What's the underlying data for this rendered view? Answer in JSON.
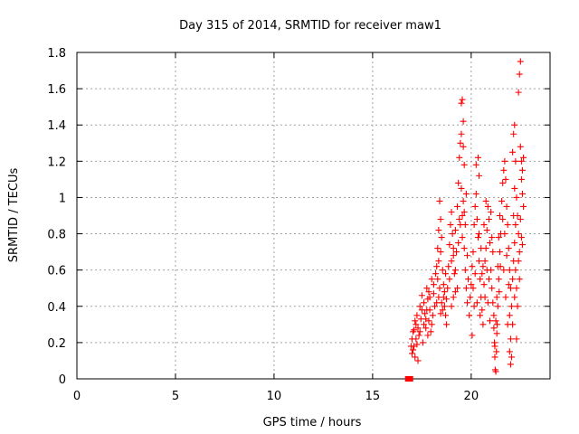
{
  "chart_data": {
    "type": "scatter",
    "title": "Day 315 of 2014, SRMTID for receiver maw1",
    "xlabel": "GPS time / hours",
    "ylabel": "SRMTID / TECUs",
    "xlim": [
      0,
      24
    ],
    "ylim": [
      0,
      1.8
    ],
    "xticks": [
      0,
      5,
      10,
      15,
      20
    ],
    "yticks": [
      0,
      0.2,
      0.4,
      0.6,
      0.8,
      1,
      1.2,
      1.4,
      1.6,
      1.8
    ],
    "xtick_labels": [
      "0",
      "5",
      "10",
      "15",
      "20"
    ],
    "ytick_labels": [
      "0",
      "0.2",
      "0.4",
      "0.6",
      "0.8",
      "1",
      "1.2",
      "1.4",
      "1.6",
      "1.8"
    ],
    "grid": true,
    "marker": "+",
    "color": "#ff0000",
    "square_markers": [
      {
        "x": 16.78,
        "y": 0.0
      },
      {
        "x": 16.92,
        "y": 0.0
      }
    ],
    "series": [
      {
        "name": "SRMTID",
        "points": [
          [
            16.95,
            0.18
          ],
          [
            17.0,
            0.22
          ],
          [
            17.05,
            0.16
          ],
          [
            17.1,
            0.27
          ],
          [
            17.15,
            0.12
          ],
          [
            17.2,
            0.3
          ],
          [
            17.25,
            0.35
          ],
          [
            17.3,
            0.1
          ],
          [
            17.35,
            0.24
          ],
          [
            17.4,
            0.4
          ],
          [
            17.45,
            0.33
          ],
          [
            17.5,
            0.46
          ],
          [
            17.55,
            0.2
          ],
          [
            17.0,
            0.14
          ],
          [
            17.1,
            0.18
          ],
          [
            17.2,
            0.22
          ],
          [
            17.3,
            0.28
          ],
          [
            17.4,
            0.26
          ],
          [
            17.5,
            0.38
          ],
          [
            17.6,
            0.3
          ],
          [
            17.05,
            0.26
          ],
          [
            17.15,
            0.32
          ],
          [
            17.25,
            0.19
          ],
          [
            17.6,
            0.42
          ],
          [
            17.65,
            0.36
          ],
          [
            17.7,
            0.28
          ],
          [
            17.75,
            0.5
          ],
          [
            17.8,
            0.44
          ],
          [
            17.85,
            0.32
          ],
          [
            17.9,
            0.38
          ],
          [
            17.95,
            0.26
          ],
          [
            18.0,
            0.55
          ],
          [
            18.05,
            0.35
          ],
          [
            18.1,
            0.47
          ],
          [
            18.15,
            0.4
          ],
          [
            17.7,
            0.33
          ],
          [
            17.8,
            0.24
          ],
          [
            17.9,
            0.45
          ],
          [
            18.0,
            0.3
          ],
          [
            18.1,
            0.52
          ],
          [
            17.75,
            0.38
          ],
          [
            17.85,
            0.48
          ],
          [
            18.2,
            0.58
          ],
          [
            18.25,
            0.62
          ],
          [
            18.3,
            0.72
          ],
          [
            18.35,
            0.82
          ],
          [
            18.4,
            0.98
          ],
          [
            18.45,
            0.88
          ],
          [
            18.5,
            0.78
          ],
          [
            18.55,
            0.6
          ],
          [
            18.6,
            0.45
          ],
          [
            18.65,
            0.4
          ],
          [
            18.7,
            0.35
          ],
          [
            18.75,
            0.3
          ],
          [
            18.8,
            0.5
          ],
          [
            18.3,
            0.55
          ],
          [
            18.35,
            0.65
          ],
          [
            18.4,
            0.5
          ],
          [
            18.45,
            0.7
          ],
          [
            18.5,
            0.42
          ],
          [
            18.55,
            0.38
          ],
          [
            18.6,
            0.52
          ],
          [
            18.65,
            0.48
          ],
          [
            18.7,
            0.58
          ],
          [
            18.75,
            0.44
          ],
          [
            18.25,
            0.42
          ],
          [
            18.35,
            0.45
          ],
          [
            18.45,
            0.36
          ],
          [
            18.85,
            0.62
          ],
          [
            18.9,
            0.74
          ],
          [
            18.95,
            0.85
          ],
          [
            19.0,
            0.92
          ],
          [
            19.05,
            0.8
          ],
          [
            19.1,
            0.68
          ],
          [
            19.15,
            0.58
          ],
          [
            19.2,
            0.48
          ],
          [
            19.25,
            0.7
          ],
          [
            19.3,
            0.95
          ],
          [
            19.35,
            1.08
          ],
          [
            19.4,
            1.22
          ],
          [
            19.45,
            1.3
          ],
          [
            18.9,
            0.55
          ],
          [
            19.0,
            0.65
          ],
          [
            19.1,
            0.45
          ],
          [
            19.2,
            0.6
          ],
          [
            19.3,
            0.5
          ],
          [
            19.4,
            0.88
          ],
          [
            19.0,
            0.4
          ],
          [
            19.1,
            0.72
          ],
          [
            19.2,
            0.82
          ],
          [
            19.35,
            0.75
          ],
          [
            19.5,
            1.52
          ],
          [
            19.55,
            1.54
          ],
          [
            19.6,
            1.42
          ],
          [
            19.5,
            1.35
          ],
          [
            19.6,
            1.28
          ],
          [
            19.65,
            1.18
          ],
          [
            19.5,
            1.05
          ],
          [
            19.55,
            0.9
          ],
          [
            19.6,
            0.98
          ],
          [
            19.65,
            0.72
          ],
          [
            19.7,
            0.6
          ],
          [
            19.75,
            0.5
          ],
          [
            19.8,
            0.42
          ],
          [
            19.45,
            0.85
          ],
          [
            19.55,
            0.78
          ],
          [
            19.65,
            0.92
          ],
          [
            19.7,
            0.85
          ],
          [
            19.75,
            1.02
          ],
          [
            19.8,
            0.68
          ],
          [
            19.85,
            0.55
          ],
          [
            19.9,
            0.35
          ],
          [
            19.95,
            0.45
          ],
          [
            20.0,
            0.52
          ],
          [
            20.05,
            0.24
          ],
          [
            20.05,
            0.62
          ],
          [
            20.1,
            0.7
          ],
          [
            20.15,
            0.85
          ],
          [
            20.2,
            0.95
          ],
          [
            20.25,
            1.02
          ],
          [
            20.3,
            0.88
          ],
          [
            20.35,
            0.78
          ],
          [
            20.4,
            0.65
          ],
          [
            20.45,
            0.55
          ],
          [
            20.5,
            0.45
          ],
          [
            20.55,
            0.38
          ],
          [
            20.6,
            0.3
          ],
          [
            20.1,
            0.5
          ],
          [
            20.2,
            0.58
          ],
          [
            20.3,
            0.42
          ],
          [
            20.4,
            0.8
          ],
          [
            20.5,
            0.72
          ],
          [
            20.6,
            0.62
          ],
          [
            20.35,
            1.22
          ],
          [
            20.4,
            1.12
          ],
          [
            20.25,
            1.18
          ],
          [
            20.15,
            0.4
          ],
          [
            20.45,
            0.35
          ],
          [
            20.55,
            0.58
          ],
          [
            20.65,
            0.52
          ],
          [
            20.7,
            0.65
          ],
          [
            20.75,
            0.72
          ],
          [
            20.8,
            0.82
          ],
          [
            20.85,
            0.95
          ],
          [
            20.9,
            0.88
          ],
          [
            20.95,
            0.75
          ],
          [
            21.0,
            0.6
          ],
          [
            21.05,
            0.5
          ],
          [
            21.1,
            0.42
          ],
          [
            21.15,
            0.35
          ],
          [
            20.7,
            0.45
          ],
          [
            20.8,
            0.6
          ],
          [
            20.9,
            0.55
          ],
          [
            21.0,
            0.92
          ],
          [
            21.1,
            0.7
          ],
          [
            20.75,
            0.98
          ],
          [
            20.85,
            0.42
          ],
          [
            20.95,
            0.32
          ],
          [
            21.05,
            0.78
          ],
          [
            20.65,
            0.85
          ],
          [
            21.15,
            0.28
          ],
          [
            21.18,
            0.2
          ],
          [
            21.2,
            0.12
          ],
          [
            21.22,
            0.05
          ],
          [
            21.25,
            0.04
          ],
          [
            21.2,
            0.18
          ],
          [
            21.25,
            0.32
          ],
          [
            21.3,
            0.45
          ],
          [
            21.35,
            0.62
          ],
          [
            21.4,
            0.78
          ],
          [
            21.45,
            0.9
          ],
          [
            21.5,
            0.8
          ],
          [
            21.3,
            0.25
          ],
          [
            21.35,
            0.4
          ],
          [
            21.4,
            0.55
          ],
          [
            21.45,
            0.7
          ],
          [
            21.28,
            0.15
          ],
          [
            21.32,
            0.3
          ],
          [
            21.42,
            0.48
          ],
          [
            21.48,
            0.62
          ],
          [
            21.55,
            0.98
          ],
          [
            21.6,
            1.08
          ],
          [
            21.65,
            1.15
          ],
          [
            21.7,
            1.2
          ],
          [
            21.75,
            1.1
          ],
          [
            21.8,
            0.95
          ],
          [
            21.85,
            0.85
          ],
          [
            21.9,
            0.72
          ],
          [
            21.95,
            0.6
          ],
          [
            22.0,
            0.5
          ],
          [
            22.05,
            0.4
          ],
          [
            22.1,
            0.3
          ],
          [
            21.6,
            0.88
          ],
          [
            21.7,
            0.8
          ],
          [
            21.8,
            0.68
          ],
          [
            21.9,
            0.52
          ],
          [
            21.95,
            0.35
          ],
          [
            22.0,
            0.22
          ],
          [
            22.05,
            0.12
          ],
          [
            21.65,
            0.6
          ],
          [
            21.75,
            0.45
          ],
          [
            21.85,
            0.3
          ],
          [
            21.95,
            0.15
          ],
          [
            22.0,
            0.08
          ],
          [
            22.1,
            0.55
          ],
          [
            22.15,
            0.65
          ],
          [
            22.2,
            0.75
          ],
          [
            22.25,
            0.85
          ],
          [
            22.1,
            1.25
          ],
          [
            22.15,
            1.35
          ],
          [
            22.2,
            1.4
          ],
          [
            22.25,
            1.2
          ],
          [
            22.3,
            1.0
          ],
          [
            22.35,
            0.9
          ],
          [
            22.4,
            0.8
          ],
          [
            22.45,
            0.7
          ],
          [
            22.15,
            0.9
          ],
          [
            22.2,
            1.05
          ],
          [
            22.25,
            0.6
          ],
          [
            22.3,
            0.5
          ],
          [
            22.35,
            0.4
          ],
          [
            22.3,
            0.22
          ],
          [
            22.4,
            0.65
          ],
          [
            22.45,
            0.55
          ],
          [
            22.2,
            0.45
          ],
          [
            22.4,
            1.58
          ],
          [
            22.45,
            1.68
          ],
          [
            22.5,
            1.75
          ],
          [
            22.5,
            1.28
          ],
          [
            22.55,
            1.2
          ],
          [
            22.6,
            1.15
          ],
          [
            22.55,
            1.1
          ],
          [
            22.6,
            1.02
          ],
          [
            22.65,
            0.95
          ],
          [
            22.5,
            0.88
          ],
          [
            22.55,
            0.78
          ],
          [
            22.65,
            1.22
          ],
          [
            22.6,
            0.74
          ]
        ]
      }
    ]
  }
}
